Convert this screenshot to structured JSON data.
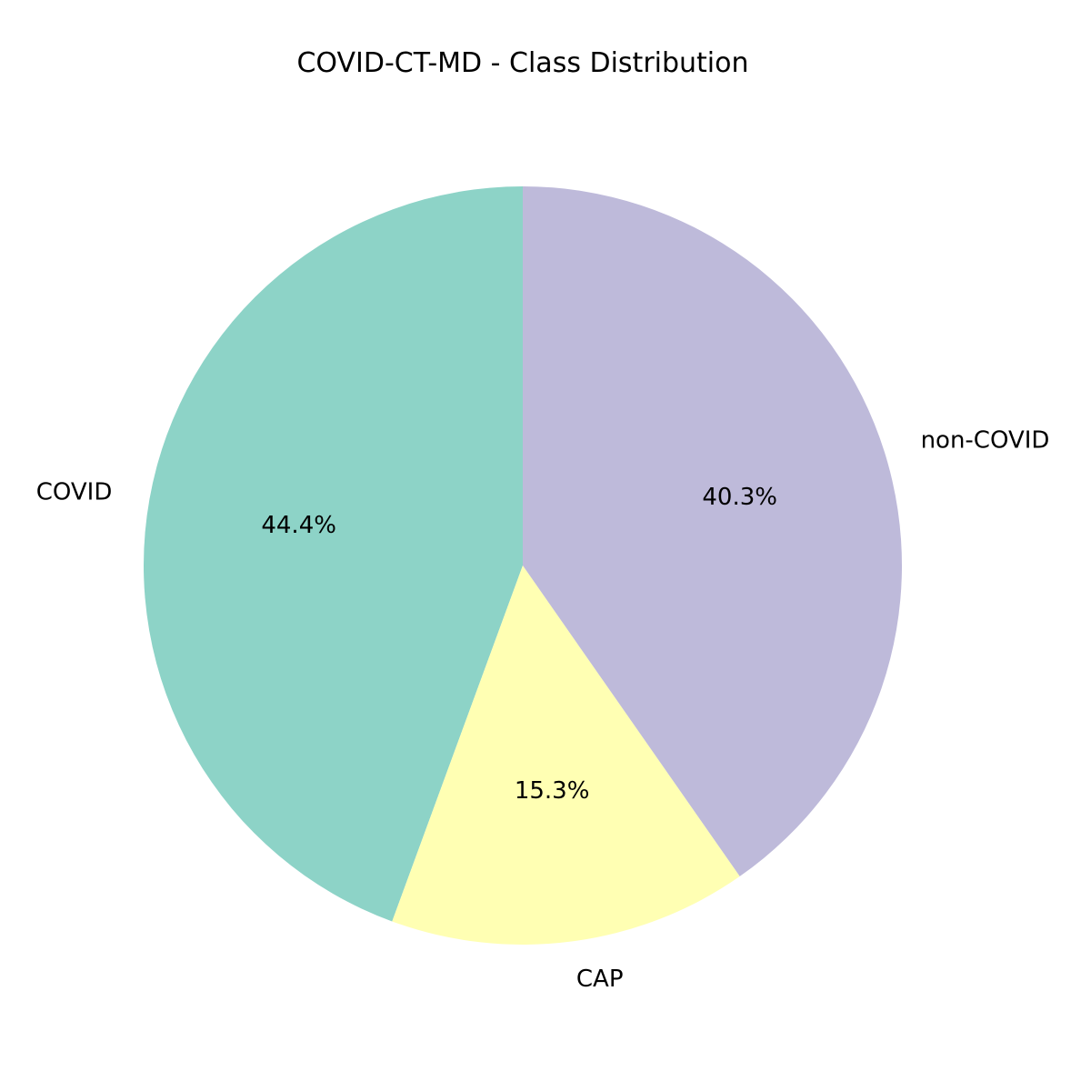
{
  "chart_data": {
    "type": "pie",
    "title": "COVID-CT-MD - Class Distribution",
    "start_angle_deg": 90,
    "direction": "counterclockwise",
    "slices": [
      {
        "label": "COVID",
        "percent_label": "44.4%",
        "value": 44.4,
        "color": "#8dd3c7"
      },
      {
        "label": "CAP",
        "percent_label": "15.3%",
        "value": 15.3,
        "color": "#ffffb3"
      },
      {
        "label": "non-COVID",
        "percent_label": "40.3%",
        "value": 40.3,
        "color": "#bebada"
      }
    ]
  }
}
